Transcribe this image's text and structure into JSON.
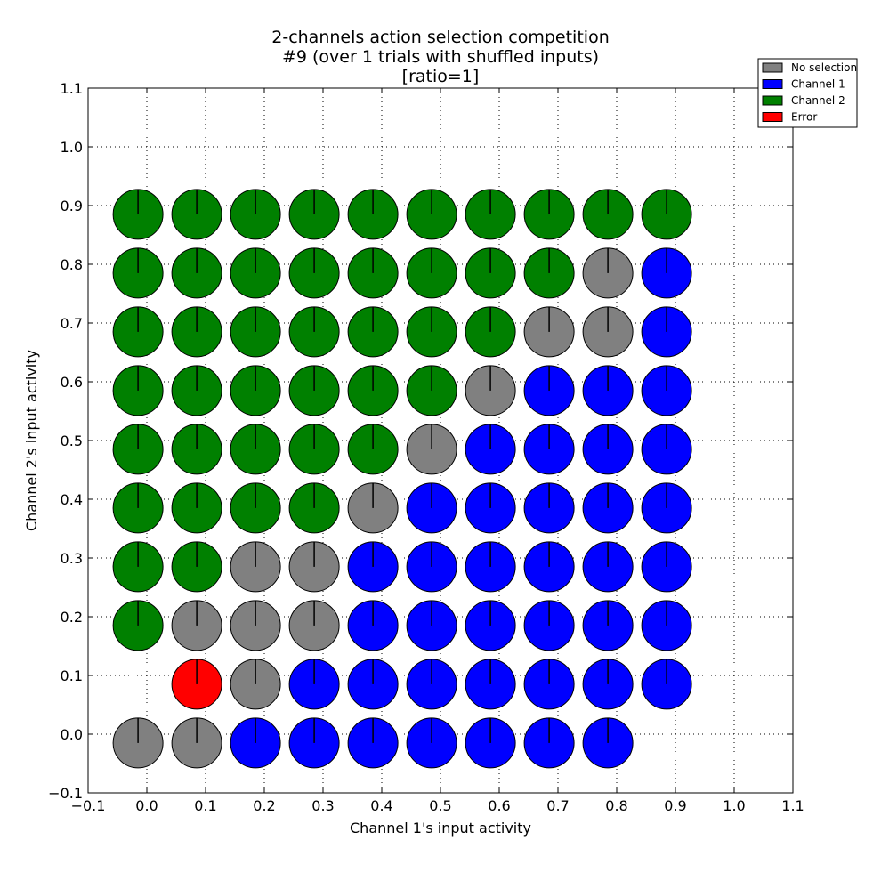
{
  "chart_data": {
    "type": "scatter",
    "title_lines": [
      "2-channels action selection competition",
      "#9 (over 1 trials with shuffled inputs)",
      "[ratio=1]"
    ],
    "xlabel": "Channel 1's input activity",
    "ylabel": "Channel 2's input activity",
    "xlim": [
      -0.1,
      1.1
    ],
    "ylim": [
      -0.1,
      1.1
    ],
    "ticks": [
      -0.1,
      0.0,
      0.1,
      0.2,
      0.3,
      0.4,
      0.5,
      0.6,
      0.7,
      0.8,
      0.9,
      1.0,
      1.1
    ],
    "tick_labels": [
      "−0.1",
      "0.0",
      "0.1",
      "0.2",
      "0.3",
      "0.4",
      "0.5",
      "0.6",
      "0.7",
      "0.8",
      "0.9",
      "1.0",
      "1.1"
    ],
    "grid": true,
    "legend_position": "upper-right, outside plot",
    "legend": [
      {
        "label": "No selection",
        "color": "#808080"
      },
      {
        "label": "Channel 1",
        "color": "#0000ff"
      },
      {
        "label": "Channel 2",
        "color": "#008000"
      },
      {
        "label": "Error",
        "color": "#ff0000"
      }
    ],
    "grid_values": [
      0.0,
      0.1,
      0.2,
      0.3,
      0.4,
      0.5,
      0.6,
      0.7,
      0.8,
      0.9
    ],
    "outcome_codes": {
      "N": "No selection",
      "C1": "Channel 1",
      "C2": "Channel 2",
      "E": "Error"
    },
    "outcome_rows": [
      {
        "y": 0.9,
        "cells": [
          "C2",
          "C2",
          "C2",
          "C2",
          "C2",
          "C2",
          "C2",
          "C2",
          "C2",
          "C2"
        ]
      },
      {
        "y": 0.8,
        "cells": [
          "C2",
          "C2",
          "C2",
          "C2",
          "C2",
          "C2",
          "C2",
          "C2",
          "N",
          "C1"
        ]
      },
      {
        "y": 0.7,
        "cells": [
          "C2",
          "C2",
          "C2",
          "C2",
          "C2",
          "C2",
          "C2",
          "N",
          "N",
          "C1"
        ]
      },
      {
        "y": 0.6,
        "cells": [
          "C2",
          "C2",
          "C2",
          "C2",
          "C2",
          "C2",
          "N",
          "C1",
          "C1",
          "C1"
        ]
      },
      {
        "y": 0.5,
        "cells": [
          "C2",
          "C2",
          "C2",
          "C2",
          "C2",
          "N",
          "C1",
          "C1",
          "C1",
          "C1"
        ]
      },
      {
        "y": 0.4,
        "cells": [
          "C2",
          "C2",
          "C2",
          "C2",
          "N",
          "C1",
          "C1",
          "C1",
          "C1",
          "C1"
        ]
      },
      {
        "y": 0.3,
        "cells": [
          "C2",
          "C2",
          "N",
          "N",
          "C1",
          "C1",
          "C1",
          "C1",
          "C1",
          "C1"
        ]
      },
      {
        "y": 0.2,
        "cells": [
          "C2",
          "N",
          "N",
          "N",
          "C1",
          "C1",
          "C1",
          "C1",
          "C1",
          "C1"
        ]
      },
      {
        "y": 0.1,
        "cells": [
          "",
          "E",
          "N",
          "C1",
          "C1",
          "C1",
          "C1",
          "C1",
          "C1",
          "C1"
        ]
      },
      {
        "y": 0.0,
        "cells": [
          "N",
          "N",
          "C1",
          "C1",
          "C1",
          "C1",
          "C1",
          "C1",
          "C1",
          ""
        ]
      }
    ]
  }
}
